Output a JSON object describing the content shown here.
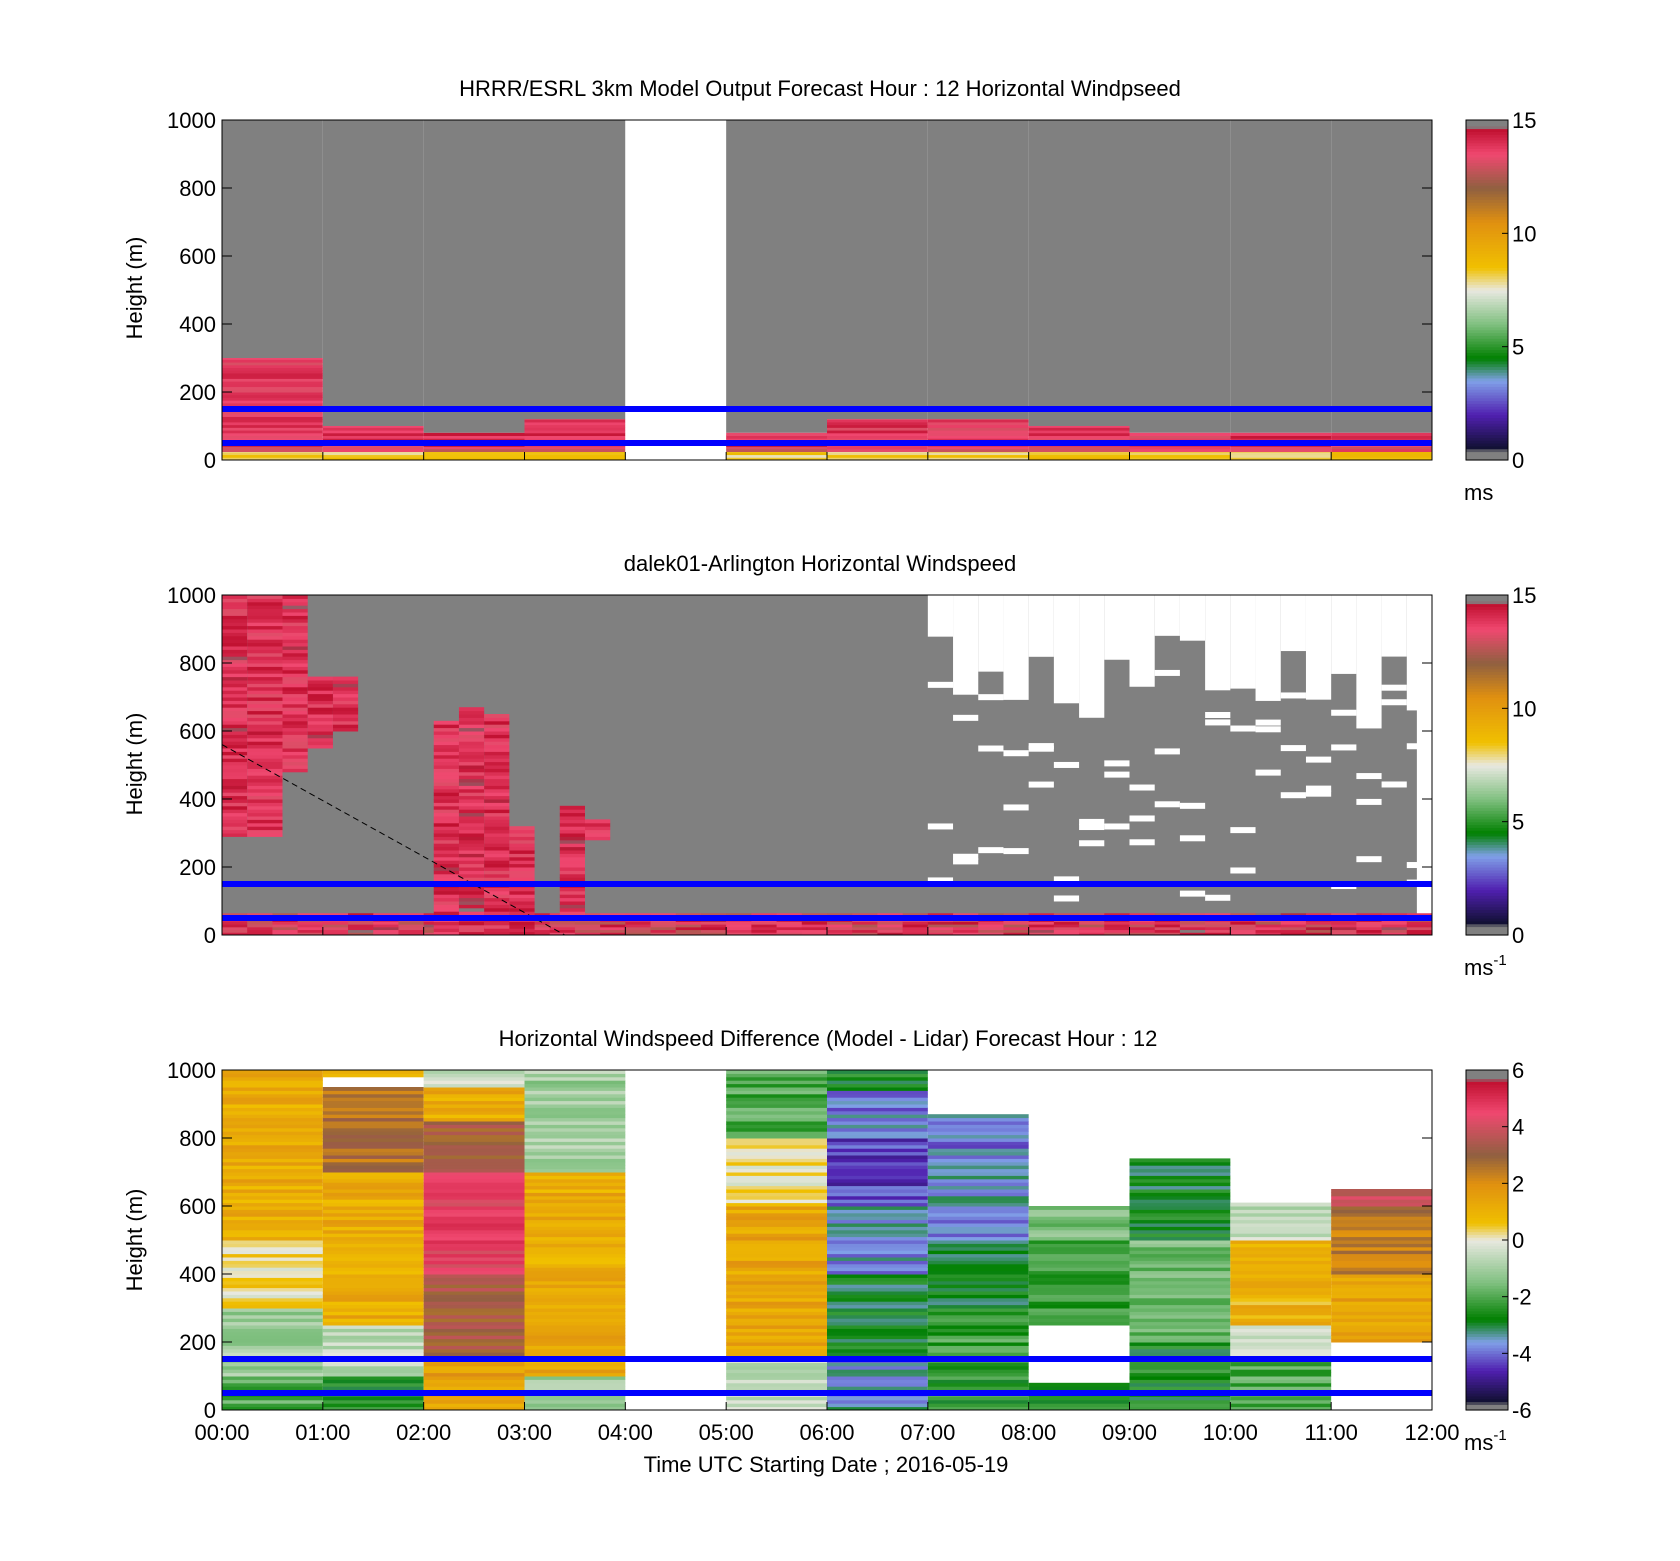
{
  "chart_data": [
    {
      "type": "heatmap",
      "id": "model",
      "title": "HRRR/ESRL 3km Model Output   Forecast Hour : 12 Horizontal Windpseed",
      "ylabel": "Height (m)",
      "xlim": [
        0,
        12
      ],
      "ylim": [
        0,
        1000
      ],
      "yticks": [
        0,
        200,
        400,
        600,
        800,
        1000
      ],
      "x_tick_labels_shown": false,
      "colorbar": {
        "range": [
          0,
          15
        ],
        "ticks": [
          0,
          5,
          10,
          15
        ],
        "unit": "ms",
        "unit_sup": "",
        "stops": [
          {
            "v": 0,
            "c": "#808080"
          },
          {
            "v": 0.4,
            "c": "#808080"
          },
          {
            "v": 0.5,
            "c": "#101030"
          },
          {
            "v": 2,
            "c": "#5020b0"
          },
          {
            "v": 3.5,
            "c": "#80a0e8"
          },
          {
            "v": 4.5,
            "c": "#008000"
          },
          {
            "v": 6,
            "c": "#80c080"
          },
          {
            "v": 7.5,
            "c": "#e8e8e0"
          },
          {
            "v": 8.5,
            "c": "#f0c000"
          },
          {
            "v": 10.5,
            "c": "#e09010"
          },
          {
            "v": 12,
            "c": "#906040"
          },
          {
            "v": 13.5,
            "c": "#f04870"
          },
          {
            "v": 14.6,
            "c": "#c01030"
          },
          {
            "v": 14.7,
            "c": "#808080"
          },
          {
            "v": 15,
            "c": "#808080"
          }
        ]
      },
      "background_color": "#808080",
      "hour_blocks": [
        {
          "t0": 0,
          "t1": 1,
          "top": 300,
          "speeds": [
            [
              0,
              25,
              9
            ],
            [
              25,
              40,
              14
            ],
            [
              40,
              300,
              14.5
            ]
          ]
        },
        {
          "t0": 1,
          "t1": 2,
          "top": 100,
          "speeds": [
            [
              0,
              25,
              9
            ],
            [
              25,
              40,
              14
            ],
            [
              40,
              100,
              14.5
            ]
          ]
        },
        {
          "t0": 2,
          "t1": 3,
          "top": 80,
          "speeds": [
            [
              0,
              25,
              9
            ],
            [
              25,
              40,
              14
            ],
            [
              40,
              80,
              14.5
            ]
          ]
        },
        {
          "t0": 3,
          "t1": 4,
          "top": 120,
          "speeds": [
            [
              0,
              25,
              9
            ],
            [
              25,
              40,
              14
            ],
            [
              40,
              120,
              14.5
            ]
          ]
        },
        {
          "t0": 4,
          "t1": 5,
          "missing": true
        },
        {
          "t0": 5,
          "t1": 6,
          "top": 80,
          "speeds": [
            [
              0,
              25,
              9
            ],
            [
              25,
              40,
              14
            ],
            [
              40,
              80,
              14.5
            ]
          ]
        },
        {
          "t0": 6,
          "t1": 7,
          "top": 120,
          "speeds": [
            [
              0,
              25,
              9
            ],
            [
              25,
              40,
              14
            ],
            [
              40,
              120,
              14.5
            ]
          ]
        },
        {
          "t0": 7,
          "t1": 8,
          "top": 120,
          "speeds": [
            [
              0,
              25,
              9
            ],
            [
              25,
              40,
              14
            ],
            [
              40,
              120,
              14.5
            ]
          ]
        },
        {
          "t0": 8,
          "t1": 9,
          "top": 100,
          "speeds": [
            [
              0,
              25,
              9
            ],
            [
              25,
              40,
              14
            ],
            [
              40,
              100,
              14.5
            ]
          ]
        },
        {
          "t0": 9,
          "t1": 10,
          "top": 80,
          "speeds": [
            [
              0,
              25,
              9
            ],
            [
              25,
              40,
              14
            ],
            [
              40,
              80,
              14.5
            ]
          ]
        },
        {
          "t0": 10,
          "t1": 11,
          "top": 80,
          "speeds": [
            [
              0,
              25,
              9
            ],
            [
              25,
              40,
              14
            ],
            [
              40,
              80,
              14.5
            ]
          ]
        },
        {
          "t0": 11,
          "t1": 12,
          "top": 80,
          "speeds": [
            [
              0,
              25,
              9
            ],
            [
              25,
              40,
              14
            ],
            [
              40,
              80,
              14.5
            ]
          ]
        }
      ],
      "reference_lines_m": [
        150,
        50
      ]
    },
    {
      "type": "heatmap",
      "id": "lidar",
      "title": "dalek01-Arlington  Horizontal Windspeed",
      "ylabel": "Height (m)",
      "xlim": [
        0,
        12
      ],
      "ylim": [
        0,
        1000
      ],
      "yticks": [
        0,
        200,
        400,
        600,
        800,
        1000
      ],
      "x_tick_labels_shown": false,
      "colorbar": {
        "range": [
          0,
          15
        ],
        "ticks": [
          0,
          5,
          10,
          15
        ],
        "unit": "ms",
        "unit_sup": "-1",
        "stops": [
          {
            "v": 0,
            "c": "#808080"
          },
          {
            "v": 0.4,
            "c": "#808080"
          },
          {
            "v": 0.5,
            "c": "#101030"
          },
          {
            "v": 2,
            "c": "#5020b0"
          },
          {
            "v": 3.5,
            "c": "#80a0e8"
          },
          {
            "v": 4.5,
            "c": "#008000"
          },
          {
            "v": 6,
            "c": "#80c080"
          },
          {
            "v": 7.5,
            "c": "#e8e8e0"
          },
          {
            "v": 8.5,
            "c": "#f0c000"
          },
          {
            "v": 10.5,
            "c": "#e09010"
          },
          {
            "v": 12,
            "c": "#906040"
          },
          {
            "v": 13.5,
            "c": "#f04870"
          },
          {
            "v": 14.6,
            "c": "#c01030"
          },
          {
            "v": 14.7,
            "c": "#808080"
          },
          {
            "v": 15,
            "c": "#808080"
          }
        ]
      },
      "background_color": "#808080",
      "high_wind_columns": [
        {
          "t0": 0.0,
          "t1": 0.25,
          "h0": 290,
          "h1": 1000
        },
        {
          "t0": 0.25,
          "t1": 0.6,
          "h0": 290,
          "h1": 1000
        },
        {
          "t0": 0.6,
          "t1": 0.85,
          "h0": 480,
          "h1": 1000
        },
        {
          "t0": 2.1,
          "t1": 2.35,
          "h0": 0,
          "h1": 630
        },
        {
          "t0": 2.35,
          "t1": 2.6,
          "h0": 0,
          "h1": 670
        },
        {
          "t0": 2.6,
          "t1": 2.85,
          "h0": 0,
          "h1": 650
        },
        {
          "t0": 2.85,
          "t1": 3.1,
          "h0": 0,
          "h1": 320
        },
        {
          "t0": 3.35,
          "t1": 3.6,
          "h0": 60,
          "h1": 380
        },
        {
          "t0": 3.6,
          "t1": 3.85,
          "h0": 280,
          "h1": 340
        },
        {
          "t0": 1.1,
          "t1": 1.35,
          "h0": 600,
          "h1": 760
        },
        {
          "t0": 0.85,
          "t1": 1.1,
          "h0": 550,
          "h1": 760
        }
      ],
      "missing_after_t": 7.0,
      "dashed_line": {
        "x": [
          0.0,
          3.4
        ],
        "y": [
          560,
          0
        ]
      },
      "reference_lines_m": [
        150,
        50
      ]
    },
    {
      "type": "heatmap",
      "id": "difference",
      "title": "Horizontal Windspeed Difference (Model - Lidar) Forecast Hour : 12",
      "ylabel": "Height (m)",
      "xlabel": "Time UTC  Starting Date ; 2016-05-19",
      "xlim": [
        0,
        12
      ],
      "ylim": [
        0,
        1000
      ],
      "yticks": [
        0,
        200,
        400,
        600,
        800,
        1000
      ],
      "xticks": [
        0,
        1,
        2,
        3,
        4,
        5,
        6,
        7,
        8,
        9,
        10,
        11,
        12
      ],
      "xtick_labels": [
        "00:00",
        "01:00",
        "02:00",
        "03:00",
        "04:00",
        "05:00",
        "06:00",
        "07:00",
        "08:00",
        "09:00",
        "10:00",
        "11:00",
        "12:00"
      ],
      "colorbar": {
        "range": [
          -6,
          6
        ],
        "ticks": [
          -6,
          -4,
          -2,
          0,
          2,
          4,
          6
        ],
        "unit": "ms",
        "unit_sup": "-1",
        "stops": [
          {
            "v": -6,
            "c": "#808080"
          },
          {
            "v": -5.8,
            "c": "#808080"
          },
          {
            "v": -5.7,
            "c": "#101030"
          },
          {
            "v": -4.6,
            "c": "#5020b0"
          },
          {
            "v": -3.6,
            "c": "#80a0e8"
          },
          {
            "v": -2.8,
            "c": "#008000"
          },
          {
            "v": -1.5,
            "c": "#80c080"
          },
          {
            "v": 0,
            "c": "#e8e8e0"
          },
          {
            "v": 0.6,
            "c": "#f0c000"
          },
          {
            "v": 2.0,
            "c": "#e09010"
          },
          {
            "v": 3.0,
            "c": "#906040"
          },
          {
            "v": 4.5,
            "c": "#f04870"
          },
          {
            "v": 5.6,
            "c": "#c01030"
          },
          {
            "v": 5.7,
            "c": "#808080"
          },
          {
            "v": 6,
            "c": "#808080"
          }
        ]
      },
      "hour_blocks": [
        {
          "t0": 0,
          "t1": 1,
          "profile": [
            [
              0,
              100,
              -2
            ],
            [
              100,
              300,
              -1
            ],
            [
              300,
              500,
              0.3
            ],
            [
              500,
              1000,
              1.2
            ]
          ]
        },
        {
          "t0": 1,
          "t1": 2,
          "profile": [
            [
              0,
              100,
              -2.5
            ],
            [
              100,
              250,
              -0.5
            ],
            [
              250,
              700,
              1.2
            ],
            [
              700,
              950,
              2.6
            ],
            [
              950,
              980,
              -100
            ],
            [
              980,
              1000,
              1.0
            ]
          ]
        },
        {
          "t0": 2,
          "t1": 3,
          "profile": [
            [
              0,
              150,
              1.5
            ],
            [
              150,
              400,
              3.2
            ],
            [
              400,
              700,
              4.6
            ],
            [
              700,
              850,
              3.0
            ],
            [
              850,
              950,
              1.2
            ],
            [
              950,
              1000,
              -0.3
            ]
          ]
        },
        {
          "t0": 3,
          "t1": 4,
          "profile": [
            [
              0,
              100,
              -1
            ],
            [
              100,
              700,
              1.2
            ],
            [
              700,
              1000,
              -1
            ]
          ]
        },
        {
          "t0": 4,
          "t1": 5,
          "missing": true
        },
        {
          "t0": 5,
          "t1": 6,
          "profile": [
            [
              0,
              150,
              -0.5
            ],
            [
              150,
              600,
              1.4
            ],
            [
              600,
              800,
              0.1
            ],
            [
              800,
              1000,
              -2
            ]
          ]
        },
        {
          "t0": 6,
          "t1": 7,
          "profile": [
            [
              0,
              150,
              -3.5
            ],
            [
              150,
              400,
              -2.8
            ],
            [
              400,
              600,
              -3.6
            ],
            [
              600,
              800,
              -4.4
            ],
            [
              800,
              940,
              -3.8
            ],
            [
              940,
              1000,
              -2.6
            ]
          ]
        },
        {
          "t0": 7,
          "t1": 8,
          "profile": [
            [
              0,
              100,
              -2.4
            ],
            [
              100,
              300,
              -2.2
            ],
            [
              300,
              500,
              -2.8
            ],
            [
              500,
              700,
              -3.6
            ],
            [
              700,
              870,
              -3.8
            ]
          ]
        },
        {
          "t0": 8,
          "t1": 9,
          "profile": [
            [
              0,
              80,
              -2.6
            ],
            [
              80,
              250,
              -100
            ],
            [
              250,
              500,
              -2.2
            ],
            [
              500,
              600,
              -1.5
            ]
          ]
        },
        {
          "t0": 9,
          "t1": 10,
          "profile": [
            [
              0,
              200,
              -2.6
            ],
            [
              200,
              500,
              -1.6
            ],
            [
              500,
              740,
              -2.8
            ]
          ]
        },
        {
          "t0": 10,
          "t1": 11,
          "profile": [
            [
              0,
              150,
              -2
            ],
            [
              150,
              250,
              -0.3
            ],
            [
              250,
              500,
              1.0
            ],
            [
              500,
              610,
              -0.5
            ]
          ]
        },
        {
          "t0": 11,
          "t1": 12,
          "profile": [
            [
              0,
              200,
              -100
            ],
            [
              200,
              400,
              1.5
            ],
            [
              400,
              600,
              2.4
            ],
            [
              600,
              650,
              4.0
            ]
          ]
        }
      ],
      "reference_lines_m": [
        150,
        50
      ]
    }
  ]
}
